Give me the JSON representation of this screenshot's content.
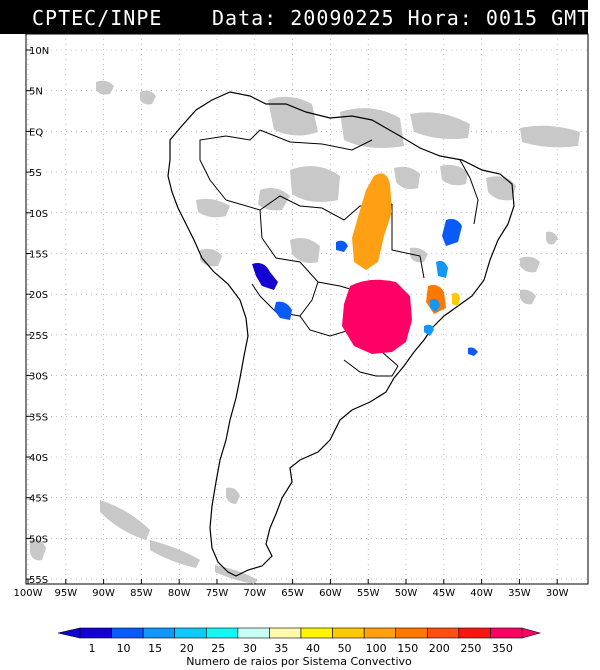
{
  "header": {
    "source": "CPTEC/INPE",
    "date_label": "Data:",
    "date_value": "20090225",
    "time_label": "Hora:",
    "time_value": "0015 GMT"
  },
  "axes": {
    "lat_labels": [
      "10N",
      "5N",
      "EQ",
      "5S",
      "10S",
      "15S",
      "20S",
      "25S",
      "30S",
      "35S",
      "40S",
      "45S",
      "50S",
      "55S"
    ],
    "lon_labels": [
      "100W",
      "95W",
      "90W",
      "85W",
      "80W",
      "75W",
      "70W",
      "65W",
      "60W",
      "55W",
      "50W",
      "45W",
      "40W",
      "35W",
      "30W"
    ]
  },
  "colorbar": {
    "ticks": [
      "1",
      "10",
      "15",
      "20",
      "25",
      "30",
      "35",
      "40",
      "50",
      "100",
      "150",
      "200",
      "250",
      "350"
    ],
    "colors": [
      "#1400d2",
      "#0a5af5",
      "#1496f5",
      "#14c8f5",
      "#14f5f5",
      "#c8fff5",
      "#fffaaa",
      "#fff500",
      "#ffc800",
      "#ffa014",
      "#ff7800",
      "#ff5014",
      "#ff1414",
      "#ff0064"
    ],
    "caption": "Numero de raios por Sistema Convectivo"
  },
  "colors": {
    "coastline": "#000000",
    "cloud": "#c8c8c8",
    "grid": "#9a9a9a"
  }
}
